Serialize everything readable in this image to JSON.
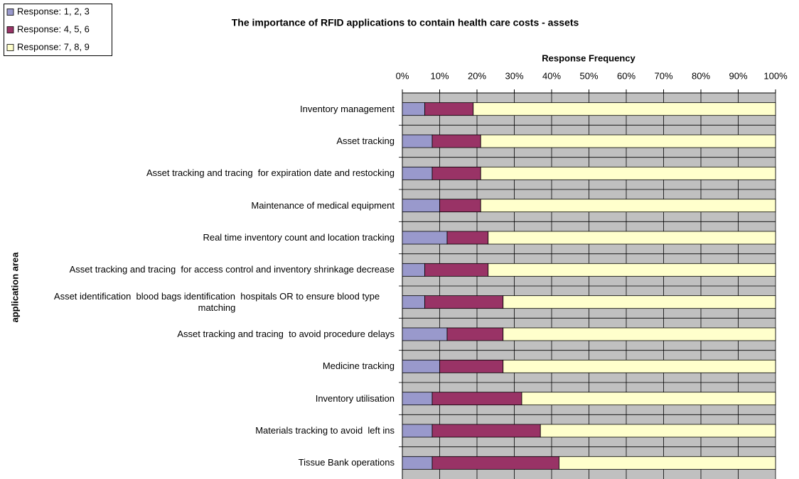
{
  "chart_data": {
    "type": "stacked_barh",
    "title": "The importance of RFID applications to contain health care costs - assets",
    "xlabel": "Response Frequency",
    "ylabel": "application area",
    "categories": [
      "Inventory management",
      "Asset tracking",
      "Asset tracking and tracing  for expiration date and restocking",
      "Maintenance of medical equipment",
      "Real time inventory count and location tracking",
      "Asset tracking and tracing  for access control and inventory shrinkage decrease",
      "Asset identification  blood bags identification  hospitals OR to ensure blood type matching",
      "Asset tracking and tracing  to avoid procedure delays",
      "Medicine tracking",
      "Inventory utilisation",
      "Materials tracking to avoid  left ins",
      "Tissue Bank operations"
    ],
    "series": [
      {
        "name": "Response: 1, 2, 3",
        "color": "#9999cc",
        "values": [
          6,
          8,
          8,
          10,
          12,
          6,
          6,
          12,
          10,
          8,
          8,
          8
        ]
      },
      {
        "name": "Response: 4, 5, 6",
        "color": "#993366",
        "values": [
          13,
          13,
          13,
          11,
          11,
          17,
          21,
          15,
          17,
          24,
          29,
          34
        ]
      },
      {
        "name": "Response: 7, 8, 9",
        "color": "#ffffcc",
        "values": [
          81,
          79,
          79,
          79,
          77,
          77,
          73,
          73,
          73,
          68,
          63,
          58
        ]
      }
    ],
    "xlim": [
      0,
      100
    ],
    "xticks": [
      {
        "value": 0,
        "label": "0%"
      },
      {
        "value": 10,
        "label": "10%"
      },
      {
        "value": 20,
        "label": "20%"
      },
      {
        "value": 30,
        "label": "30%"
      },
      {
        "value": 40,
        "label": "40%"
      },
      {
        "value": 50,
        "label": "50%"
      },
      {
        "value": 60,
        "label": "60%"
      },
      {
        "value": 70,
        "label": "70%"
      },
      {
        "value": 80,
        "label": "80%"
      },
      {
        "value": 90,
        "label": "90%"
      },
      {
        "value": 100,
        "label": "100%"
      }
    ],
    "grid": true,
    "legend": "top-left"
  }
}
